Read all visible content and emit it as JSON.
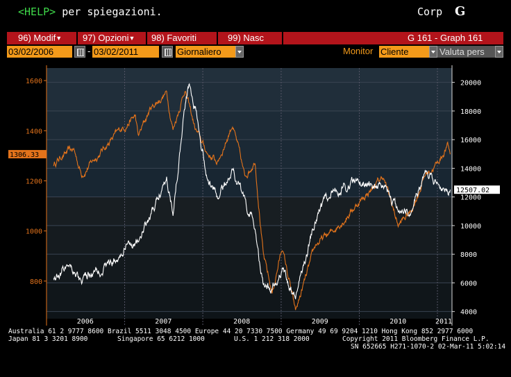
{
  "header": {
    "help_key": "<HELP>",
    "help_text": " per spiegazioni.",
    "sector": "Corp",
    "logo": "G"
  },
  "menu": {
    "items": [
      {
        "label": "96) Modif"
      },
      {
        "label": "97) Opzioni"
      },
      {
        "label": "98) Favoriti"
      },
      {
        "label": "99) Nasc"
      }
    ],
    "screen_id": "G 161 - Graph 161"
  },
  "toolbar": {
    "start_date": "03/02/2006",
    "dash": "-",
    "end_date": "03/02/2011",
    "frequency": "Giornaliero",
    "monitor_label": "Monitor",
    "monitor_value": "Cliente",
    "currency": "Valuta pers"
  },
  "colors": {
    "accent_orange": "#f39a1a",
    "menu_red": "#b3141b",
    "series_orange": "#e3731b",
    "series_white": "#ffffff",
    "help_green": "#3fd94a"
  },
  "chart_data": {
    "type": "line",
    "x_tick_labels": [
      "2006",
      "2007",
      "2008",
      "2009",
      "2010",
      "2011"
    ],
    "y_left": {
      "ticks": [
        800,
        1000,
        1200,
        1400,
        1600
      ],
      "range": [
        650,
        1650
      ],
      "last_value_label": "1306.33"
    },
    "y_right": {
      "ticks": [
        4000,
        6000,
        8000,
        10000,
        12000,
        14000,
        16000,
        18000,
        20000
      ],
      "range": [
        3500,
        21000
      ],
      "last_value_label": "12507.02"
    },
    "series": [
      {
        "axis": "left",
        "color": "#e3731b",
        "points": [
          [
            "2006-02-03",
            1265
          ],
          [
            "2006-03-15",
            1300
          ],
          [
            "2006-05-08",
            1325
          ],
          [
            "2006-06-14",
            1225
          ],
          [
            "2006-08-01",
            1275
          ],
          [
            "2006-10-02",
            1335
          ],
          [
            "2006-12-01",
            1395
          ],
          [
            "2007-02-20",
            1458
          ],
          [
            "2007-03-05",
            1375
          ],
          [
            "2007-05-01",
            1488
          ],
          [
            "2007-07-16",
            1552
          ],
          [
            "2007-08-15",
            1406
          ],
          [
            "2007-10-09",
            1565
          ],
          [
            "2007-11-26",
            1408
          ],
          [
            "2008-01-22",
            1310
          ],
          [
            "2008-03-10",
            1273
          ],
          [
            "2008-05-19",
            1426
          ],
          [
            "2008-07-15",
            1215
          ],
          [
            "2008-09-01",
            1283
          ],
          [
            "2008-10-10",
            899
          ],
          [
            "2008-11-20",
            752
          ],
          [
            "2009-01-06",
            935
          ],
          [
            "2009-03-09",
            677
          ],
          [
            "2009-06-12",
            945
          ],
          [
            "2009-09-01",
            1000
          ],
          [
            "2009-12-31",
            1115
          ],
          [
            "2010-04-23",
            1217
          ],
          [
            "2010-07-02",
            1022
          ],
          [
            "2010-09-01",
            1080
          ],
          [
            "2010-11-05",
            1225
          ],
          [
            "2011-01-03",
            1271
          ],
          [
            "2011-02-18",
            1343
          ],
          [
            "2011-03-02",
            1306
          ]
        ]
      },
      {
        "axis": "right",
        "color": "#ffffff",
        "points": [
          [
            "2006-02-03",
            6300
          ],
          [
            "2006-04-20",
            7500
          ],
          [
            "2006-06-14",
            6000
          ],
          [
            "2006-08-01",
            6700
          ],
          [
            "2006-10-02",
            7200
          ],
          [
            "2006-12-01",
            7700
          ],
          [
            "2007-02-01",
            8800
          ],
          [
            "2007-03-05",
            9000
          ],
          [
            "2007-05-01",
            10500
          ],
          [
            "2007-07-16",
            13500
          ],
          [
            "2007-08-15",
            11000
          ],
          [
            "2007-10-01",
            17500
          ],
          [
            "2007-10-30",
            20000
          ],
          [
            "2007-12-10",
            17500
          ],
          [
            "2008-01-22",
            13300
          ],
          [
            "2008-03-10",
            12000
          ],
          [
            "2008-05-19",
            14000
          ],
          [
            "2008-07-15",
            11600
          ],
          [
            "2008-09-01",
            9800
          ],
          [
            "2008-10-10",
            5700
          ],
          [
            "2008-11-20",
            5500
          ],
          [
            "2009-01-06",
            7000
          ],
          [
            "2009-03-09",
            5000
          ],
          [
            "2009-06-12",
            10500
          ],
          [
            "2009-09-01",
            12500
          ],
          [
            "2009-12-31",
            13100
          ],
          [
            "2010-04-23",
            12500
          ],
          [
            "2010-07-02",
            11000
          ],
          [
            "2010-09-01",
            11000
          ],
          [
            "2010-11-05",
            13600
          ],
          [
            "2011-01-03",
            13000
          ],
          [
            "2011-02-18",
            12300
          ],
          [
            "2011-03-02",
            12507
          ]
        ]
      }
    ]
  },
  "footer": {
    "line1": "Australia 61 2 9777 8600 Brazil 5511 3048 4500 Europe 44 20 7330 7500 Germany 49 69 9204 1210 Hong Kong 852 2977 6000",
    "line2a": "Japan 81 3 3201 8900",
    "line2b": "Singapore 65 6212 1000",
    "line2c": "U.S. 1 212 318 2000",
    "line2d": "Copyright 2011 Bloomberg Finance L.P.",
    "line3": "SN 652665 H271-1070-2 02-Mar-11  5:02:14"
  }
}
